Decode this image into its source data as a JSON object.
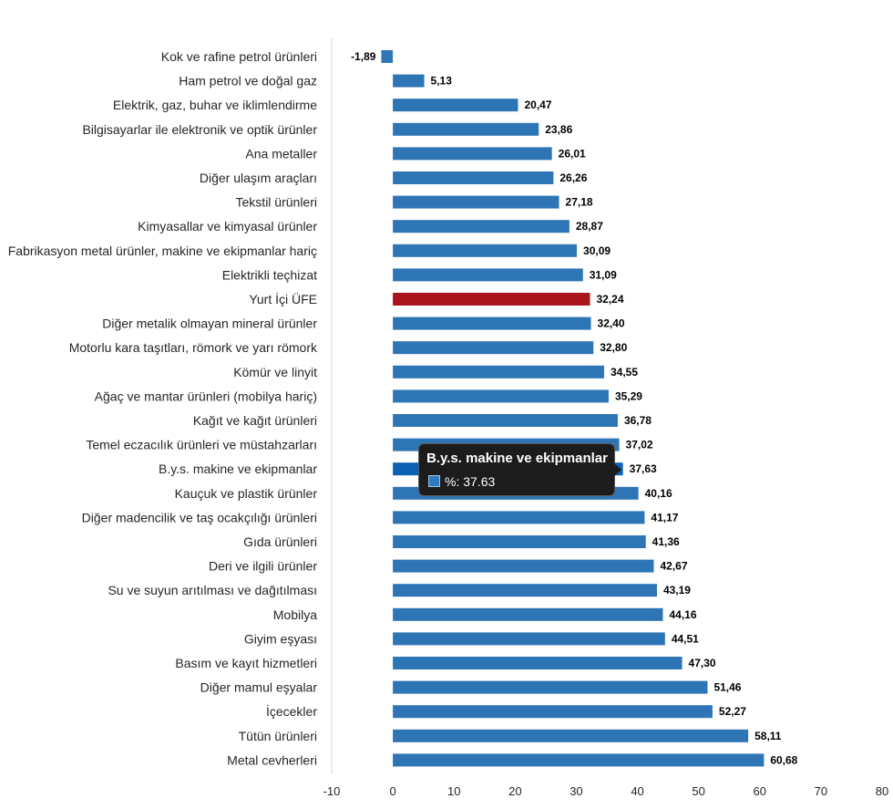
{
  "chart_data": {
    "type": "bar",
    "orientation": "horizontal",
    "categories": [
      "Kok ve rafine petrol ürünleri",
      "Ham petrol ve doğal gaz",
      "Elektrik, gaz, buhar ve iklimlendirme",
      "Bilgisayarlar ile elektronik ve optik ürünler",
      "Ana metaller",
      "Diğer ulaşım araçları",
      "Tekstil ürünleri",
      "Kimyasallar ve kimyasal ürünler",
      "Fabrikasyon metal ürünler, makine ve ekipmanlar hariç",
      "Elektrikli teçhizat",
      "Yurt İçi ÜFE",
      "Diğer metalik olmayan mineral ürünler",
      "Motorlu kara taşıtları, römork ve yarı römork",
      "Kömür ve linyit",
      "Ağaç ve mantar ürünleri (mobilya hariç)",
      "Kağıt ve kağıt ürünleri",
      "Temel eczacılık ürünleri ve müstahzarları",
      "B.y.s. makine ve ekipmanlar",
      "Kauçuk ve plastik ürünler",
      "Diğer madencilik ve taş ocakçılığı ürünleri",
      "Gıda ürünleri",
      "Deri ve ilgili ürünler",
      "Su ve suyun arıtılması ve dağıtılması",
      "Mobilya",
      "Giyim eşyası",
      "Basım ve kayıt hizmetleri",
      "Diğer mamul eşyalar",
      "İçecekler",
      "Tütün ürünleri",
      "Metal cevherleri"
    ],
    "values": [
      -1.89,
      5.13,
      20.47,
      23.86,
      26.01,
      26.26,
      27.18,
      28.87,
      30.09,
      31.09,
      32.24,
      32.4,
      32.8,
      34.55,
      35.29,
      36.78,
      37.02,
      37.63,
      40.16,
      41.17,
      41.36,
      42.67,
      43.19,
      44.16,
      44.51,
      47.3,
      51.46,
      52.27,
      58.11,
      60.68
    ],
    "value_labels": [
      "-1,89",
      "5,13",
      "20,47",
      "23,86",
      "26,01",
      "26,26",
      "27,18",
      "28,87",
      "30,09",
      "31,09",
      "32,24",
      "32,40",
      "32,80",
      "34,55",
      "35,29",
      "36,78",
      "37,02",
      "37,63",
      "40,16",
      "41,17",
      "41,36",
      "42,67",
      "43,19",
      "44,16",
      "44,51",
      "47,30",
      "51,46",
      "52,27",
      "58,11",
      "60,68"
    ],
    "xlim": [
      -10,
      80
    ],
    "xticks": [
      -10,
      0,
      10,
      20,
      30,
      40,
      50,
      60,
      70,
      80
    ],
    "grid": false,
    "legend": "none",
    "colors": {
      "bar": "#2e75b6",
      "highlight": "#a8151c",
      "hover": "#0b62b5"
    },
    "highlight_category": "Yurt İçi ÜFE",
    "hover_category": "B.y.s. makine ve ekipmanlar"
  },
  "tooltip": {
    "title": "B.y.s. makine ve ekipmanlar",
    "label": "%: 37.63"
  }
}
